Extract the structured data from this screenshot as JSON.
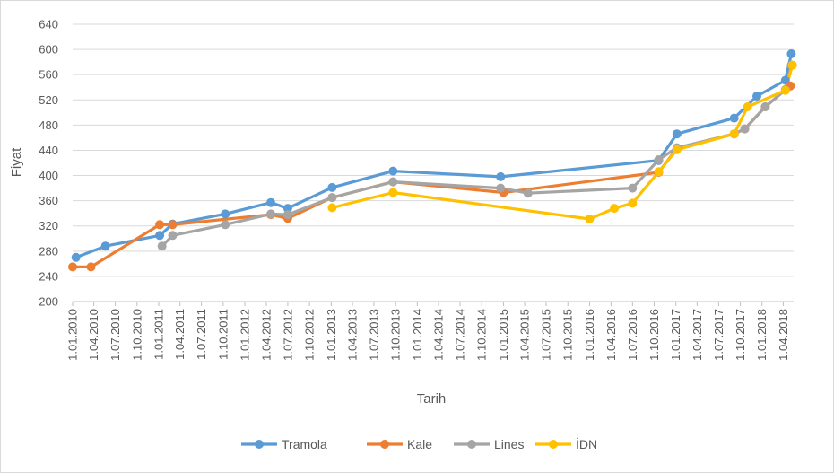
{
  "chart_data": {
    "type": "line",
    "title": "",
    "xlabel": "Tarih",
    "ylabel": "Fiyat",
    "ylim": [
      200,
      640
    ],
    "yticks": [
      200,
      240,
      280,
      320,
      360,
      400,
      440,
      480,
      520,
      560,
      600,
      640
    ],
    "xlim": [
      "2010-01-01",
      "2018-05-15"
    ],
    "xtick_labels": [
      "1.01.2010",
      "1.04.2010",
      "1.07.2010",
      "1.10.2010",
      "1.01.2011",
      "1.04.2011",
      "1.07.2011",
      "1.10.2011",
      "1.01.2012",
      "1.04.2012",
      "1.07.2012",
      "1.10.2012",
      "1.01.2013",
      "1.04.2013",
      "1.07.2013",
      "1.10.2013",
      "1.01.2014",
      "1.04.2014",
      "1.07.2014",
      "1.10.2014",
      "1.01.2015",
      "1.04.2015",
      "1.07.2015",
      "1.10.2015",
      "1.01.2016",
      "1.04.2016",
      "1.07.2016",
      "1.10.2016",
      "1.01.2017",
      "1.04.2017",
      "1.07.2017",
      "1.10.2017",
      "1.01.2018",
      "1.04.2018"
    ],
    "grid": "horizontal",
    "legend_position": "bottom",
    "series": [
      {
        "name": "Tramola",
        "color": "#5b9bd5",
        "x": [
          "2010-01-15",
          "2010-05-20",
          "2011-01-05",
          "2011-03-01",
          "2011-10-10",
          "2012-04-20",
          "2012-07-01",
          "2013-01-05",
          "2013-09-20",
          "2014-12-20",
          "2016-10-20",
          "2017-01-05",
          "2017-09-05",
          "2017-12-10",
          "2018-04-10",
          "2018-05-05"
        ],
        "y": [
          270,
          288,
          305,
          323,
          339,
          357,
          348,
          381,
          407,
          398,
          424,
          466,
          491,
          526,
          551,
          593
        ]
      },
      {
        "name": "Kale",
        "color": "#ed7d31",
        "x": [
          "2010-01-01",
          "2010-03-20",
          "2011-01-05",
          "2011-03-01",
          "2012-04-20",
          "2012-07-01",
          "2013-01-05",
          "2013-09-20",
          "2015-01-01",
          "2016-10-20",
          "2017-01-05",
          "2017-09-05",
          "2017-10-20",
          "2018-01-15",
          "2018-04-10",
          "2018-05-01"
        ],
        "y": [
          255,
          255,
          322,
          322,
          338,
          332,
          365,
          390,
          373,
          405,
          443,
          466,
          474,
          509,
          536,
          542
        ]
      },
      {
        "name": "Lines",
        "color": "#a5a5a5",
        "x": [
          "2011-01-15",
          "2011-03-01",
          "2011-10-10",
          "2012-04-20",
          "2012-07-01",
          "2013-01-05",
          "2013-09-20",
          "2014-12-20",
          "2015-04-15",
          "2016-07-01",
          "2016-10-20",
          "2017-01-05",
          "2017-09-05",
          "2017-10-20",
          "2018-01-15",
          "2018-04-10",
          "2018-05-05"
        ],
        "y": [
          288,
          305,
          322,
          339,
          338,
          365,
          390,
          380,
          372,
          380,
          425,
          444,
          466,
          474,
          509,
          536,
          575
        ]
      },
      {
        "name": "İDN",
        "color": "#ffc000",
        "x": [
          "2013-01-05",
          "2013-09-20",
          "2016-01-01",
          "2016-04-15",
          "2016-07-01",
          "2016-10-20",
          "2017-01-05",
          "2017-09-05",
          "2017-11-01",
          "2018-04-10",
          "2018-05-10"
        ],
        "y": [
          349,
          373,
          331,
          348,
          356,
          406,
          441,
          466,
          509,
          535,
          575
        ]
      }
    ]
  }
}
